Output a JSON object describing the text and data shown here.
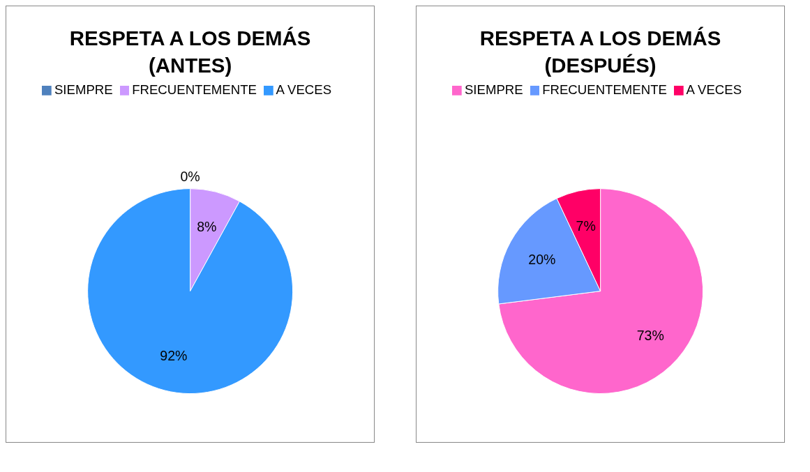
{
  "chart_data": [
    {
      "type": "pie",
      "title": "RESPETA A LOS DEMÁS\n(ANTES)",
      "categories": [
        "SIEMPRE",
        "FRECUENTEMENTE",
        "A VECES"
      ],
      "values": [
        0,
        8,
        92
      ],
      "colors": [
        "#4f81bd",
        "#cc99ff",
        "#3399ff"
      ],
      "value_labels": [
        "0%",
        "8%",
        "92%"
      ],
      "legend": "top"
    },
    {
      "type": "pie",
      "title": "RESPETA A LOS DEMÁS\n(DESPUÉS)",
      "categories": [
        "SIEMPRE",
        "FRECUENTEMENTE",
        "A VECES"
      ],
      "values": [
        73,
        20,
        7
      ],
      "colors": [
        "#ff66cc",
        "#6699ff",
        "#ff0066"
      ],
      "value_labels": [
        "73%",
        "20%",
        "7%"
      ],
      "legend": "top"
    }
  ]
}
